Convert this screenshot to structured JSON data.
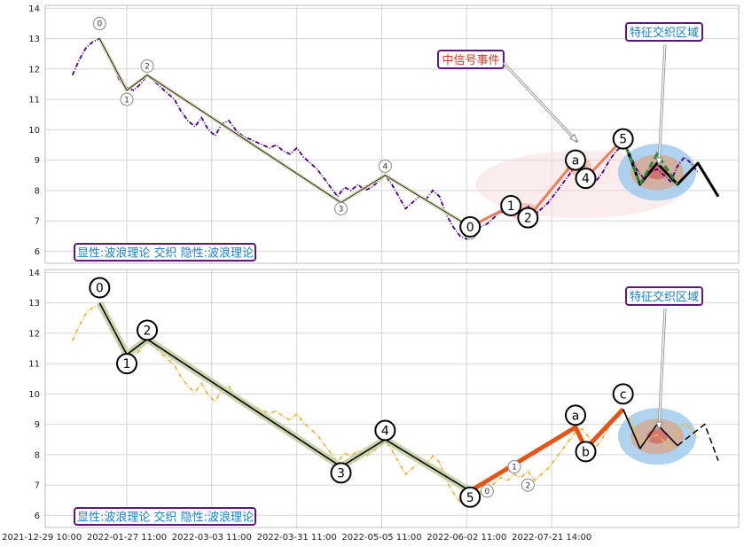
{
  "chart_data": [
    {
      "type": "line",
      "panel": "top",
      "caption": "显性:波浪理论 交织 隐性:波浪理论",
      "callouts": [
        {
          "text": "中信号事件",
          "color": "#c0392b"
        },
        {
          "text": "特征交织区域",
          "color": "#1b7fbf"
        }
      ],
      "ylim": [
        5.6,
        14.1
      ],
      "yticks": [
        6,
        7,
        8,
        9,
        10,
        11,
        12,
        13,
        14
      ],
      "price_color": "#4b0082",
      "price": [
        [
          0,
          11.8
        ],
        [
          2,
          12.3
        ],
        [
          4,
          12.7
        ],
        [
          6,
          12.9
        ],
        [
          8,
          13.0
        ],
        [
          10,
          12.6
        ],
        [
          12,
          12.1
        ],
        [
          14,
          11.6
        ],
        [
          16,
          11.4
        ],
        [
          18,
          11.3
        ],
        [
          20,
          11.5
        ],
        [
          22,
          11.8
        ],
        [
          24,
          11.6
        ],
        [
          26,
          11.4
        ],
        [
          28,
          11.2
        ],
        [
          30,
          11.0
        ],
        [
          32,
          10.6
        ],
        [
          34,
          10.3
        ],
        [
          36,
          10.1
        ],
        [
          38,
          10.4
        ],
        [
          40,
          10.0
        ],
        [
          42,
          9.8
        ],
        [
          44,
          10.2
        ],
        [
          46,
          10.3
        ],
        [
          48,
          10.0
        ],
        [
          50,
          9.8
        ],
        [
          52,
          9.7
        ],
        [
          54,
          9.6
        ],
        [
          56,
          9.5
        ],
        [
          58,
          9.4
        ],
        [
          60,
          9.5
        ],
        [
          62,
          9.3
        ],
        [
          64,
          9.2
        ],
        [
          66,
          9.4
        ],
        [
          68,
          9.1
        ],
        [
          70,
          8.9
        ],
        [
          72,
          8.7
        ],
        [
          74,
          8.4
        ],
        [
          76,
          8.1
        ],
        [
          78,
          7.8
        ],
        [
          80,
          8.1
        ],
        [
          82,
          8.0
        ],
        [
          84,
          8.2
        ],
        [
          86,
          8.0
        ],
        [
          88,
          8.1
        ],
        [
          90,
          8.3
        ],
        [
          92,
          8.5
        ],
        [
          94,
          8.2
        ],
        [
          96,
          7.8
        ],
        [
          98,
          7.4
        ],
        [
          100,
          7.6
        ],
        [
          102,
          7.8
        ],
        [
          104,
          7.7
        ],
        [
          106,
          8.0
        ],
        [
          108,
          7.8
        ],
        [
          110,
          7.2
        ],
        [
          112,
          6.8
        ],
        [
          114,
          6.5
        ],
        [
          116,
          6.4
        ],
        [
          118,
          6.7
        ],
        [
          120,
          6.8
        ],
        [
          122,
          6.9
        ],
        [
          124,
          7.1
        ],
        [
          126,
          7.3
        ],
        [
          128,
          7.2
        ],
        [
          130,
          7.4
        ],
        [
          132,
          7.3
        ],
        [
          134,
          7.5
        ],
        [
          136,
          7.2
        ],
        [
          138,
          7.4
        ],
        [
          140,
          7.6
        ],
        [
          142,
          7.9
        ],
        [
          144,
          8.2
        ],
        [
          146,
          8.5
        ],
        [
          148,
          8.8
        ],
        [
          150,
          8.9
        ],
        [
          152,
          8.6
        ],
        [
          154,
          8.3
        ],
        [
          156,
          8.6
        ],
        [
          158,
          9.0
        ],
        [
          160,
          9.3
        ],
        [
          162,
          9.5
        ],
        [
          164,
          9.2
        ],
        [
          166,
          8.7
        ],
        [
          168,
          8.4
        ],
        [
          170,
          8.6
        ],
        [
          172,
          8.7
        ],
        [
          174,
          8.5
        ],
        [
          176,
          8.3
        ],
        [
          178,
          8.8
        ],
        [
          180,
          9.1
        ],
        [
          182,
          8.9
        ],
        [
          184,
          8.6
        ]
      ],
      "wave_lines": [
        {
          "color": "#2b2b2b",
          "width": 1,
          "halo": "#d7dbb0",
          "points": [
            [
              8,
              13.0
            ],
            [
              16,
              11.3
            ],
            [
              22,
              11.8
            ],
            [
              79,
              7.6
            ],
            [
              92,
              8.5
            ],
            [
              117,
              6.8
            ]
          ]
        },
        {
          "color": "#e8805a",
          "width": 3,
          "points": [
            [
              117,
              6.8
            ],
            [
              129,
              7.5
            ],
            [
              134,
              7.1
            ],
            [
              148,
              9.0
            ],
            [
              151,
              8.4
            ],
            [
              162,
              9.7
            ]
          ]
        },
        {
          "color": "#000000",
          "width": 3,
          "points": [
            [
              162,
              9.7
            ],
            [
              167,
              8.2
            ],
            [
              172,
              8.9
            ],
            [
              178,
              8.2
            ],
            [
              184,
              8.9
            ],
            [
              190,
              7.8
            ]
          ]
        }
      ],
      "dashed_line": {
        "color": "#2e8b2e",
        "points": [
          [
            163,
            9.4
          ],
          [
            167,
            8.2
          ],
          [
            172,
            9.2
          ],
          [
            178,
            8.2
          ]
        ]
      },
      "big_labels": [
        {
          "text": "0",
          "x": 117,
          "y": 6.8
        },
        {
          "text": "1",
          "x": 129,
          "y": 7.5
        },
        {
          "text": "2",
          "x": 134,
          "y": 7.1
        },
        {
          "text": "a",
          "x": 148,
          "y": 9.0
        },
        {
          "text": "4",
          "x": 151,
          "y": 8.4
        },
        {
          "text": "5",
          "x": 162,
          "y": 9.7
        }
      ],
      "small_labels": [
        {
          "text": "0",
          "x": 8,
          "y": 13.5
        },
        {
          "text": "1",
          "x": 16,
          "y": 11.0
        },
        {
          "text": "2",
          "x": 22,
          "y": 12.1
        },
        {
          "text": "3",
          "x": 79,
          "y": 7.4
        },
        {
          "text": "4",
          "x": 92,
          "y": 8.8
        },
        {
          "text": "5",
          "x": 117,
          "y": 6.6
        }
      ]
    },
    {
      "type": "line",
      "panel": "bottom",
      "caption": "显性:波浪理论 交织 隐性:波浪理论",
      "callouts": [
        {
          "text": "特征交织区域",
          "color": "#1b7fbf"
        }
      ],
      "ylim": [
        5.6,
        14.1
      ],
      "yticks": [
        6,
        7,
        8,
        9,
        10,
        11,
        12,
        13,
        14
      ],
      "price_color": "#e8b84a",
      "wave_lines": [
        {
          "color": "#000000",
          "width": 1.6,
          "halo": "#c6d0a4",
          "points": [
            [
              8,
              13.0
            ],
            [
              16,
              11.3
            ],
            [
              22,
              11.8
            ],
            [
              79,
              7.6
            ],
            [
              92,
              8.5
            ],
            [
              117,
              6.8
            ]
          ]
        },
        {
          "color": "#e2561a",
          "width": 5,
          "points": [
            [
              117,
              6.8
            ],
            [
              148,
              8.9
            ],
            [
              151,
              8.2
            ],
            [
              162,
              9.5
            ]
          ]
        },
        {
          "color": "#000000",
          "width": 1.6,
          "points": [
            [
              162,
              9.5
            ],
            [
              167,
              8.2
            ],
            [
              172,
              9.0
            ],
            [
              178,
              8.3
            ]
          ]
        }
      ],
      "dashed_line": {
        "color": "#000000",
        "points": [
          [
            178,
            8.3
          ],
          [
            186,
            9.0
          ],
          [
            190,
            7.8
          ]
        ]
      },
      "big_labels": [
        {
          "text": "0",
          "x": 8,
          "y": 13.5
        },
        {
          "text": "1",
          "x": 16,
          "y": 11.0
        },
        {
          "text": "2",
          "x": 22,
          "y": 12.1
        },
        {
          "text": "3",
          "x": 79,
          "y": 7.4
        },
        {
          "text": "4",
          "x": 92,
          "y": 8.8
        },
        {
          "text": "5",
          "x": 117,
          "y": 6.6
        },
        {
          "text": "a",
          "x": 148,
          "y": 9.3
        },
        {
          "text": "b",
          "x": 151,
          "y": 8.1
        },
        {
          "text": "c",
          "x": 162,
          "y": 10.0
        }
      ],
      "small_labels": [
        {
          "text": "0",
          "x": 122,
          "y": 6.8
        },
        {
          "text": "1",
          "x": 130,
          "y": 7.6
        },
        {
          "text": "2",
          "x": 134,
          "y": 7.0
        }
      ]
    }
  ],
  "x_axis": {
    "xlim": [
      -8,
      196
    ],
    "ticks": [
      {
        "x": -9,
        "label": "2021-12-29 10:00"
      },
      {
        "x": 16,
        "label": "2022-01-27 11:00"
      },
      {
        "x": 41,
        "label": "2022-03-03 11:00"
      },
      {
        "x": 66,
        "label": "2022-03-31 11:00"
      },
      {
        "x": 91,
        "label": "2022-05-05 11:00"
      },
      {
        "x": 116,
        "label": "2022-06-02 11:00"
      },
      {
        "x": 141,
        "label": "2022-07-21 14:00"
      }
    ]
  }
}
